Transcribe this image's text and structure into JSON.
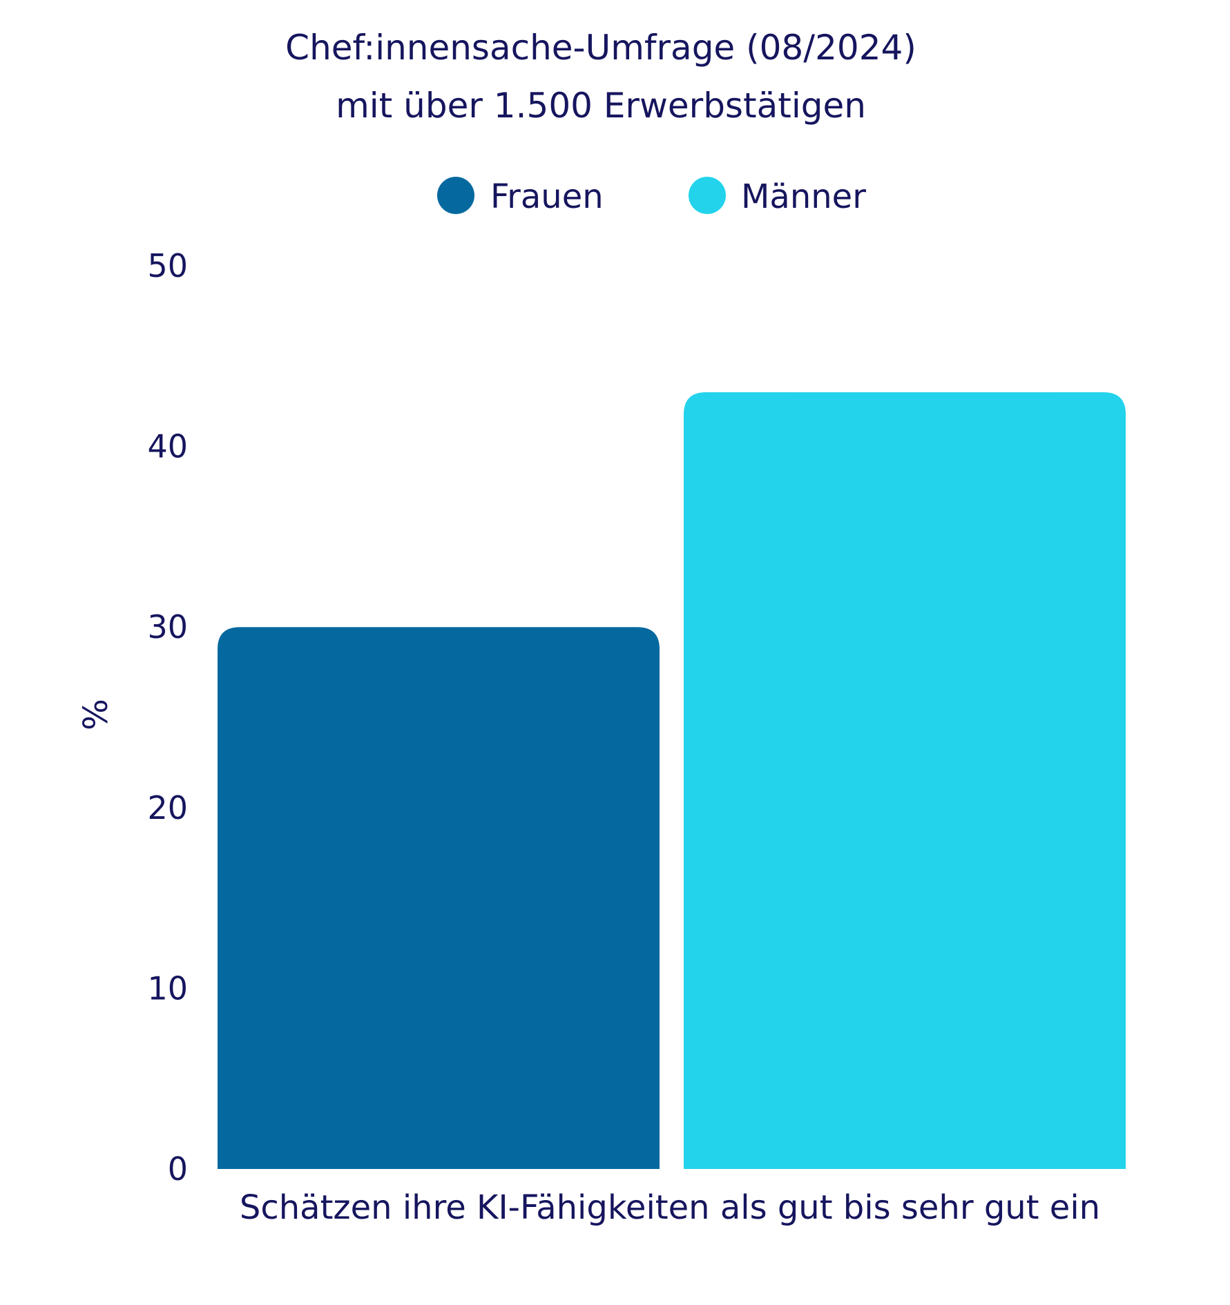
{
  "colors": {
    "text": "#16155e",
    "frauen": "#05699f",
    "maenner": "#22d3eb",
    "background": "#ffffff"
  },
  "chart_data": {
    "type": "bar",
    "title_lines": [
      "Chef:innensache-Umfrage (08/2024)",
      "mit über 1.500 Erwerbstätigen"
    ],
    "categories": [
      "Schätzen ihre KI-Fähigkeiten als gut bis sehr gut ein"
    ],
    "series": [
      {
        "name": "Frauen",
        "color": "#05699f",
        "values": [
          30
        ]
      },
      {
        "name": "Männer",
        "color": "#22d3eb",
        "values": [
          43
        ]
      }
    ],
    "xlabel": "Schätzen ihre KI-Fähigkeiten als gut bis sehr gut ein",
    "ylabel": "%",
    "ylim": [
      0,
      50
    ],
    "yticks": [
      "0",
      "10",
      "20",
      "30",
      "40",
      "50"
    ],
    "legend_position": "top-center",
    "grid": false
  }
}
